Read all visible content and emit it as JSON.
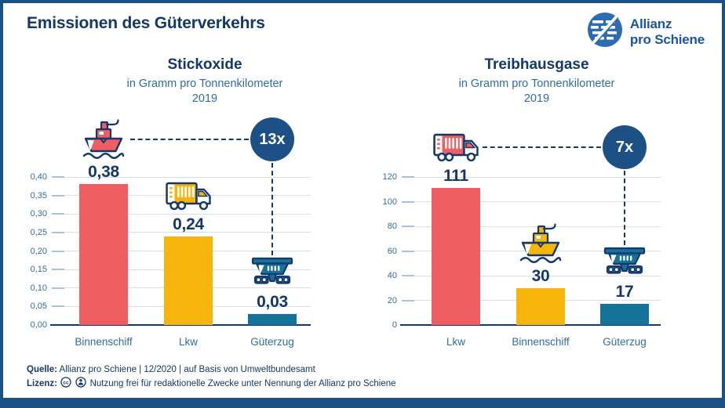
{
  "page": {
    "title": "Emissionen des Güterverkehrs"
  },
  "logo": {
    "line1": "Allianz",
    "line2": "pro Schiene"
  },
  "colors": {
    "navy": "#14386b",
    "axis_blue": "#2e6da4",
    "badge_blue": "#1d5186",
    "red": "#ee5e62",
    "yellow": "#f7b50c",
    "teal": "#15739b",
    "grid": "#d4e0ec",
    "border": "#1d5186"
  },
  "footer": {
    "source_label": "Quelle:",
    "source_text": "Allianz pro Schiene | 12/2020 | auf Basis von Umweltbundesamt",
    "license_label": "Lizenz:",
    "license_icons": [
      "cc-icon",
      "cc-by-icon"
    ],
    "license_text": "Nutzung frei für redaktionelle Zwecke unter Nennung der Allianz pro Schiene"
  },
  "chart_data": [
    {
      "type": "bar",
      "title": "Stickoxide",
      "subtitle": "in Gramm pro Tonnenkilometer",
      "year": "2019",
      "categories": [
        "Binnenschiff",
        "Lkw",
        "Güterzug"
      ],
      "values": [
        0.38,
        0.24,
        0.03
      ],
      "value_labels": [
        "0,38",
        "0,24",
        "0,03"
      ],
      "bar_colors": [
        "#ee5e62",
        "#f7b50c",
        "#15739b"
      ],
      "icons": [
        "ship-icon",
        "truck-icon",
        "wagon-icon"
      ],
      "xlabel": "",
      "ylabel": "",
      "ylim": [
        0,
        0.4
      ],
      "yticks": [
        0,
        0.05,
        0.1,
        0.15,
        0.2,
        0.25,
        0.3,
        0.35,
        0.4
      ],
      "ytick_labels": [
        "0,00",
        "0,05",
        "0,10",
        "0,15",
        "0,20",
        "0,25",
        "0,30",
        "0,35",
        "0,40"
      ],
      "grid": true,
      "legend": "none",
      "multiplier_badge": "13x"
    },
    {
      "type": "bar",
      "title": "Treibhausgase",
      "subtitle": "in Gramm pro Tonnenkilometer",
      "year": "2019",
      "categories": [
        "Lkw",
        "Binnenschiff",
        "Güterzug"
      ],
      "values": [
        111,
        30,
        17
      ],
      "value_labels": [
        "111",
        "30",
        "17"
      ],
      "bar_colors": [
        "#ee5e62",
        "#f7b50c",
        "#15739b"
      ],
      "icons": [
        "truck-icon",
        "ship-icon",
        "wagon-icon"
      ],
      "xlabel": "",
      "ylabel": "",
      "ylim": [
        0,
        120
      ],
      "yticks": [
        0,
        20,
        40,
        60,
        80,
        100,
        120
      ],
      "ytick_labels": [
        "0",
        "20",
        "40",
        "60",
        "80",
        "100",
        "120"
      ],
      "grid": true,
      "legend": "none",
      "multiplier_badge": "7x"
    }
  ]
}
